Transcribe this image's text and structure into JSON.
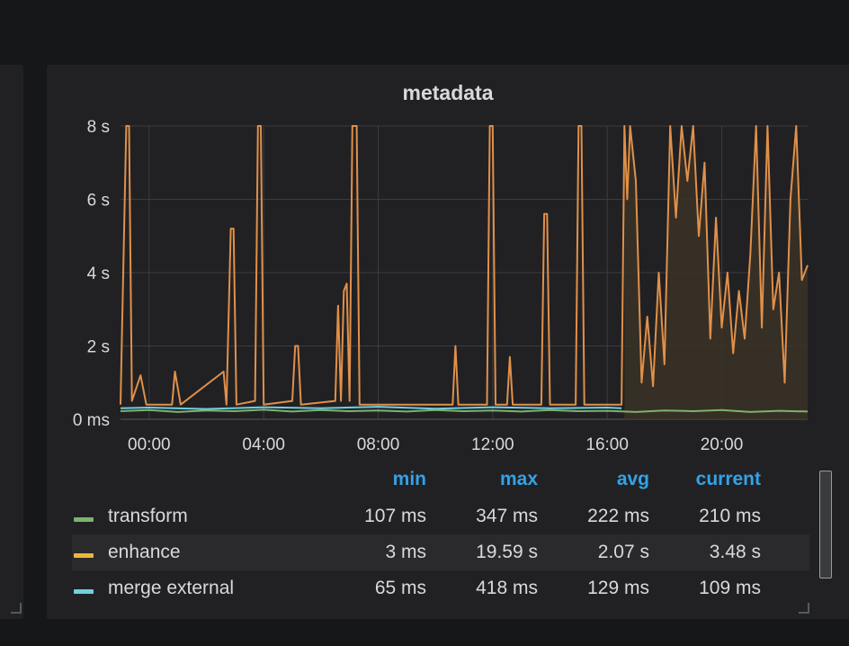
{
  "panel": {
    "title": "metadata"
  },
  "chart_data": {
    "type": "line",
    "y_ticks": [
      "8 s",
      "6 s",
      "4 s",
      "2 s",
      "0 ms"
    ],
    "x_ticks": [
      "00:00",
      "04:00",
      "08:00",
      "12:00",
      "16:00",
      "20:00"
    ],
    "x_unit": "hours",
    "x_range": [
      -1,
      23
    ],
    "ylim": [
      0,
      8
    ],
    "grid": true,
    "series": [
      {
        "name": "transform",
        "color": "#7eb26d",
        "points": [
          [
            -1,
            0.22
          ],
          [
            0,
            0.25
          ],
          [
            1,
            0.2
          ],
          [
            2,
            0.24
          ],
          [
            3,
            0.22
          ],
          [
            4,
            0.26
          ],
          [
            5,
            0.21
          ],
          [
            6,
            0.25
          ],
          [
            7,
            0.22
          ],
          [
            8,
            0.24
          ],
          [
            9,
            0.21
          ],
          [
            10,
            0.25
          ],
          [
            11,
            0.22
          ],
          [
            12,
            0.24
          ],
          [
            13,
            0.21
          ],
          [
            14,
            0.25
          ],
          [
            15,
            0.22
          ],
          [
            16,
            0.23
          ],
          [
            17,
            0.2
          ],
          [
            18,
            0.24
          ],
          [
            19,
            0.22
          ],
          [
            20,
            0.25
          ],
          [
            21,
            0.2
          ],
          [
            22,
            0.23
          ],
          [
            23,
            0.21
          ]
        ]
      },
      {
        "name": "enhance",
        "color": "#eab839",
        "points": [
          [
            -1,
            0.4
          ],
          [
            -0.8,
            8
          ],
          [
            -0.7,
            8
          ],
          [
            -0.6,
            0.5
          ],
          [
            -0.3,
            1.2
          ],
          [
            -0.1,
            0.4
          ],
          [
            0.8,
            0.4
          ],
          [
            0.9,
            1.3
          ],
          [
            1.1,
            0.4
          ],
          [
            2.6,
            1.3
          ],
          [
            2.7,
            0.4
          ],
          [
            2.85,
            5.2
          ],
          [
            2.95,
            5.2
          ],
          [
            3.05,
            0.4
          ],
          [
            3.7,
            0.5
          ],
          [
            3.8,
            8
          ],
          [
            3.9,
            8
          ],
          [
            4.0,
            0.4
          ],
          [
            5.0,
            0.5
          ],
          [
            5.1,
            2.0
          ],
          [
            5.2,
            2.0
          ],
          [
            5.3,
            0.4
          ],
          [
            6.5,
            0.5
          ],
          [
            6.6,
            3.1
          ],
          [
            6.7,
            0.5
          ],
          [
            6.8,
            3.5
          ],
          [
            6.9,
            3.7
          ],
          [
            7.0,
            0.5
          ],
          [
            7.1,
            8
          ],
          [
            7.25,
            8
          ],
          [
            7.35,
            0.4
          ],
          [
            10.6,
            0.4
          ],
          [
            10.7,
            2.0
          ],
          [
            10.8,
            0.4
          ],
          [
            11.8,
            0.4
          ],
          [
            11.9,
            8
          ],
          [
            12.0,
            8
          ],
          [
            12.1,
            0.4
          ],
          [
            12.5,
            0.4
          ],
          [
            12.6,
            1.7
          ],
          [
            12.7,
            0.4
          ],
          [
            13.7,
            0.4
          ],
          [
            13.8,
            5.6
          ],
          [
            13.9,
            5.6
          ],
          [
            14.0,
            0.4
          ],
          [
            14.9,
            0.4
          ],
          [
            15.0,
            8
          ],
          [
            15.1,
            8
          ],
          [
            15.2,
            0.4
          ],
          [
            16.5,
            0.4
          ],
          [
            16.6,
            8
          ],
          [
            16.7,
            6.0
          ],
          [
            16.8,
            8
          ],
          [
            17.0,
            6.5
          ],
          [
            17.2,
            1.0
          ],
          [
            17.4,
            2.8
          ],
          [
            17.6,
            0.9
          ],
          [
            17.8,
            4.0
          ],
          [
            18.0,
            1.5
          ],
          [
            18.2,
            8
          ],
          [
            18.4,
            5.5
          ],
          [
            18.6,
            8
          ],
          [
            18.8,
            6.5
          ],
          [
            19.0,
            8
          ],
          [
            19.2,
            5.0
          ],
          [
            19.4,
            7.0
          ],
          [
            19.6,
            2.2
          ],
          [
            19.8,
            5.5
          ],
          [
            20.0,
            2.5
          ],
          [
            20.2,
            4.0
          ],
          [
            20.4,
            1.8
          ],
          [
            20.6,
            3.5
          ],
          [
            20.8,
            2.2
          ],
          [
            21.0,
            4.5
          ],
          [
            21.2,
            8
          ],
          [
            21.4,
            2.5
          ],
          [
            21.6,
            8
          ],
          [
            21.8,
            3.0
          ],
          [
            22.0,
            4.0
          ],
          [
            22.2,
            1.0
          ],
          [
            22.4,
            6.0
          ],
          [
            22.6,
            8
          ],
          [
            22.8,
            3.8
          ],
          [
            23.0,
            4.2
          ]
        ]
      },
      {
        "name": "merge external",
        "color": "#6ed0e0",
        "points": [
          [
            -1,
            0.3
          ],
          [
            0,
            0.32
          ],
          [
            2,
            0.28
          ],
          [
            4,
            0.33
          ],
          [
            6,
            0.3
          ],
          [
            8,
            0.34
          ],
          [
            10,
            0.29
          ],
          [
            12,
            0.33
          ],
          [
            14,
            0.3
          ],
          [
            16,
            0.32
          ],
          [
            16.5,
            0.3
          ]
        ]
      }
    ]
  },
  "legend": {
    "headers": [
      "min",
      "max",
      "avg",
      "current"
    ],
    "rows": [
      {
        "name": "transform",
        "color": "#7eb26d",
        "min": "107 ms",
        "max": "347 ms",
        "avg": "222 ms",
        "current": "210 ms"
      },
      {
        "name": "enhance",
        "color": "#eab839",
        "min": "3 ms",
        "max": "19.59 s",
        "avg": "2.07 s",
        "current": "3.48 s"
      },
      {
        "name": "merge external",
        "color": "#6ed0e0",
        "min": "65 ms",
        "max": "418 ms",
        "avg": "129 ms",
        "current": "109 ms"
      }
    ]
  },
  "colors": {
    "enhance_line": "#e0904a",
    "enhance_fill": "#3a3126",
    "grid": "#3a3c40",
    "axis_text": "#d8d9da",
    "legend_header": "#33a2e5",
    "background": "#161719",
    "panel": "#212124"
  }
}
